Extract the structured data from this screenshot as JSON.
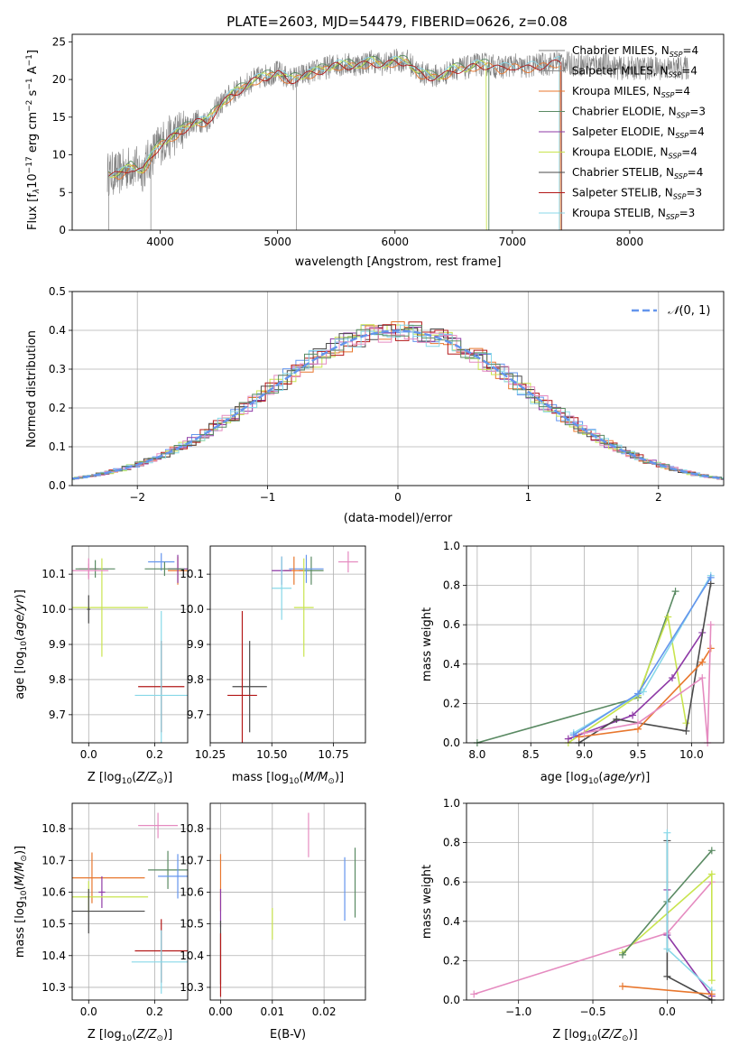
{
  "title": "PLATE=2603, MJD=54479, FIBERID=0626, z=0.08",
  "colors": {
    "series": [
      "#808080",
      "#8c8c8c",
      "#e8772e",
      "#5a8a63",
      "#8e3aa6",
      "#c8e44e",
      "#4a4a4a",
      "#b31818",
      "#88d8e8"
    ],
    "normal": "#6495ed",
    "hist": [
      "#6495ed",
      "#e8772e",
      "#8e3aa6",
      "#c8e44e",
      "#4a4a4a",
      "#b31818",
      "#88d8e8",
      "#e58bc0",
      "#5a8a63"
    ]
  },
  "chart_data": [
    {
      "type": "line",
      "title": "PLATE=2603, MJD=54479, FIBERID=0626, z=0.08",
      "xlabel": "wavelength [Angstrom, rest frame]",
      "ylabel": "Flux [f",
      "xlim": [
        3250,
        8800
      ],
      "ylim": [
        0,
        26
      ],
      "xticks": [
        "4000",
        "5000",
        "6000",
        "7000",
        "8000"
      ],
      "yticks": [
        "0",
        "5",
        "10",
        "15",
        "20",
        "25"
      ],
      "legend_position": "right",
      "legend": [
        {
          "label": "Chabrier MILES, N",
          "n": "4"
        },
        {
          "label": "Salpeter MILES, N",
          "n": "4"
        },
        {
          "label": "Kroupa MILES, N",
          "n": "4"
        },
        {
          "label": "Chabrier ELODIE, N",
          "n": "3"
        },
        {
          "label": "Salpeter ELODIE, N",
          "n": "4"
        },
        {
          "label": "Kroupa ELODIE, N",
          "n": "4"
        },
        {
          "label": "Chabrier STELIB, N",
          "n": "4"
        },
        {
          "label": "Salpeter STELIB, N",
          "n": "3"
        },
        {
          "label": "Kroupa STELIB, N",
          "n": "3"
        }
      ],
      "spectrum_envelope": {
        "x": [
          3550,
          3650,
          3750,
          3850,
          3950,
          4000,
          4100,
          4200,
          4300,
          4400,
          4500,
          4600,
          4700,
          4800,
          4900,
          5000,
          5100,
          5200,
          5300,
          5400,
          5500,
          5600,
          5700,
          5800,
          5900,
          6000,
          6100,
          6200,
          6300,
          6400,
          6500,
          6600,
          6700,
          6800,
          6900,
          7000,
          7100,
          7200,
          7300,
          7400,
          7500,
          7600,
          7700,
          7800,
          7900,
          8000,
          8100,
          8200,
          8300,
          8400,
          8500
        ],
        "y": [
          7.5,
          7.5,
          8.5,
          8.0,
          10.5,
          11.5,
          12.5,
          13.5,
          14.5,
          14.5,
          16.5,
          18.0,
          19.0,
          20.0,
          20.5,
          21.0,
          20.0,
          20.5,
          21.0,
          21.5,
          22.0,
          22.0,
          22.0,
          22.5,
          22.0,
          22.5,
          22.5,
          21.0,
          20.5,
          20.5,
          21.5,
          21.5,
          22.0,
          22.0,
          21.5,
          22.0,
          21.5,
          22.0,
          22.0,
          22.5,
          22.0,
          22.0,
          22.0,
          22.0,
          21.5,
          21.5,
          21.5,
          21.5,
          21.5,
          21.5,
          21.5
        ]
      }
    },
    {
      "type": "histogram",
      "xlabel": "(data-model)/error",
      "ylabel": "Normed distribution",
      "xlim": [
        -2.5,
        2.5
      ],
      "ylim": [
        0,
        0.5
      ],
      "xticks": [
        "−2",
        "−1",
        "0",
        "1",
        "2"
      ],
      "yticks": [
        "0.0",
        "0.1",
        "0.2",
        "0.3",
        "0.4",
        "0.5"
      ],
      "legend_label": "(0, 1)",
      "bin_width": 0.1,
      "reference": "normal(0,1)"
    },
    {
      "type": "scatter",
      "xlabel": "Z [log",
      "ylabel": "age  [log",
      "xlim": [
        -0.05,
        0.3
      ],
      "ylim": [
        9.62,
        10.18
      ],
      "xticks": [
        "0.0",
        "0.2"
      ],
      "yticks": [
        "9.7",
        "9.8",
        "9.9",
        "10.0",
        "10.1"
      ],
      "points": [
        {
          "x": 0.0,
          "y": 10.115,
          "xerr": 0.03,
          "yerr": 0.03
        },
        {
          "x": 0.02,
          "y": 10.115,
          "xerr": 0.06,
          "yerr": 0.025
        },
        {
          "x": 0.22,
          "y": 10.135,
          "xerr": 0.04,
          "yerr": 0.025
        },
        {
          "x": 0.27,
          "y": 10.11,
          "xerr": 0.03,
          "yerr": 0.04
        },
        {
          "x": 0.27,
          "y": 10.115,
          "xerr": 0.03,
          "yerr": 0.04
        },
        {
          "x": 0.04,
          "y": 10.005,
          "xerr": 0.14,
          "yerr": 0.14
        },
        {
          "x": 0.0,
          "y": 10.0,
          "xerr": 0.005,
          "yerr": 0.04
        },
        {
          "x": 0.22,
          "y": 9.78,
          "xerr": 0.07,
          "yerr": 0.13
        },
        {
          "x": 0.22,
          "y": 9.755,
          "xerr": 0.08,
          "yerr": 0.24
        },
        {
          "x": 0.0,
          "y": 10.11,
          "xerr": 0.06,
          "yerr": 0.02
        },
        {
          "x": 0.23,
          "y": 10.115,
          "xerr": 0.06,
          "yerr": 0.02
        }
      ]
    },
    {
      "type": "scatter",
      "xlabel": "mass [log",
      "ylabel": "",
      "xlim": [
        10.25,
        10.88
      ],
      "ylim": [
        9.62,
        10.18
      ],
      "xticks": [
        "10.25",
        "10.50",
        "10.75"
      ],
      "yticks": [
        "9.7",
        "9.8",
        "9.9",
        "10.0",
        "10.1"
      ],
      "points": [
        {
          "x": 10.81,
          "y": 10.135,
          "xerr": 0.04,
          "yerr": 0.03
        },
        {
          "x": 10.66,
          "y": 10.11,
          "xerr": 0.05,
          "yerr": 0.04
        },
        {
          "x": 10.64,
          "y": 10.115,
          "xerr": 0.07,
          "yerr": 0.04
        },
        {
          "x": 10.59,
          "y": 10.11,
          "xerr": 0.04,
          "yerr": 0.04
        },
        {
          "x": 10.54,
          "y": 10.11,
          "xerr": 0.04,
          "yerr": 0.04
        },
        {
          "x": 10.63,
          "y": 10.005,
          "xerr": 0.04,
          "yerr": 0.14
        },
        {
          "x": 10.41,
          "y": 9.78,
          "xerr": 0.07,
          "yerr": 0.13
        },
        {
          "x": 10.38,
          "y": 9.755,
          "xerr": 0.06,
          "yerr": 0.24
        },
        {
          "x": 10.54,
          "y": 10.06,
          "xerr": 0.04,
          "yerr": 0.09
        }
      ]
    },
    {
      "type": "line",
      "xlabel": "age  [log",
      "ylabel": "mass weight",
      "xlim": [
        7.9,
        10.3
      ],
      "ylim": [
        0,
        1
      ],
      "xticks": [
        "8.0",
        "8.5",
        "9.0",
        "9.5",
        "10.0"
      ],
      "yticks": [
        "0.0",
        "0.2",
        "0.4",
        "0.6",
        "0.8",
        "1.0"
      ],
      "series": [
        {
          "color": "#5a8a63",
          "x": [
            8.0,
            9.5,
            9.85
          ],
          "y": [
            0.0,
            0.23,
            0.77
          ]
        },
        {
          "color": "#c8e44e",
          "x": [
            8.85,
            9.5,
            9.78,
            9.95
          ],
          "y": [
            0.0,
            0.24,
            0.64,
            0.1
          ]
        },
        {
          "color": "#8e3aa6",
          "x": [
            8.85,
            9.45,
            9.82,
            10.1
          ],
          "y": [
            0.02,
            0.14,
            0.33,
            0.56
          ]
        },
        {
          "color": "#4a4a4a",
          "x": [
            8.95,
            9.3,
            9.95,
            10.18
          ],
          "y": [
            0.0,
            0.12,
            0.06,
            0.81
          ]
        },
        {
          "color": "#e8772e",
          "x": [
            8.95,
            9.5,
            10.1,
            10.18
          ],
          "y": [
            0.03,
            0.07,
            0.41,
            0.48
          ]
        },
        {
          "color": "#88d8e8",
          "x": [
            8.9,
            9.55,
            10.18
          ],
          "y": [
            0.05,
            0.26,
            0.85
          ]
        },
        {
          "color": "#e58bc0",
          "x": [
            9.0,
            9.5,
            10.1,
            10.15,
            10.18
          ],
          "y": [
            0.05,
            0.1,
            0.33,
            0.0,
            0.6
          ]
        },
        {
          "color": "#6495ed",
          "x": [
            8.9,
            9.5,
            10.18
          ],
          "y": [
            0.04,
            0.25,
            0.84
          ]
        }
      ]
    },
    {
      "type": "scatter",
      "xlabel": "Z [log",
      "ylabel": "mass [log",
      "xlim": [
        -0.05,
        0.3
      ],
      "ylim": [
        10.26,
        10.88
      ],
      "xticks": [
        "0.0",
        "0.2"
      ],
      "yticks": [
        "10.3",
        "10.4",
        "10.5",
        "10.6",
        "10.7",
        "10.8"
      ],
      "points": [
        {
          "x": 0.21,
          "y": 10.81,
          "xerr": 0.06,
          "yerr": 0.04
        },
        {
          "x": 0.24,
          "y": 10.67,
          "xerr": 0.06,
          "yerr": 0.06
        },
        {
          "x": 0.27,
          "y": 10.65,
          "xerr": 0.06,
          "yerr": 0.07
        },
        {
          "x": 0.01,
          "y": 10.645,
          "xerr": 0.16,
          "yerr": 0.08
        },
        {
          "x": 0.04,
          "y": 10.6,
          "xerr": 0.01,
          "yerr": 0.05
        },
        {
          "x": 0.0,
          "y": 10.585,
          "xerr": 0.18,
          "yerr": 0.05
        },
        {
          "x": 0.0,
          "y": 10.54,
          "xerr": 0.17,
          "yerr": 0.07
        },
        {
          "x": 0.22,
          "y": 10.415,
          "xerr": 0.08,
          "yerr": 0.1
        },
        {
          "x": 0.22,
          "y": 10.38,
          "xerr": 0.09,
          "yerr": 0.1
        }
      ]
    },
    {
      "type": "scatter",
      "xlabel": "E(B-V)",
      "ylabel": "",
      "xlim": [
        -0.002,
        0.028
      ],
      "ylim": [
        10.26,
        10.88
      ],
      "xticks": [
        "0.00",
        "0.01",
        "0.02"
      ],
      "yticks": [
        "10.3",
        "10.4",
        "10.5",
        "10.6",
        "10.7",
        "10.8"
      ],
      "points": [
        {
          "x": 0.017,
          "y": 10.78,
          "xerr": 0,
          "yerr": 0.07
        },
        {
          "x": 0.026,
          "y": 10.63,
          "xerr": 0,
          "yerr": 0.11
        },
        {
          "x": 0.024,
          "y": 10.61,
          "xerr": 0,
          "yerr": 0.1
        },
        {
          "x": 0.0,
          "y": 10.63,
          "xerr": 0,
          "yerr": 0.09
        },
        {
          "x": 0.0,
          "y": 10.55,
          "xerr": 0,
          "yerr": 0.06
        },
        {
          "x": 0.01,
          "y": 10.5,
          "xerr": 0,
          "yerr": 0.05
        },
        {
          "x": 0.0,
          "y": 10.41,
          "xerr": 0,
          "yerr": 0.1
        },
        {
          "x": 0.0,
          "y": 10.37,
          "xerr": 0,
          "yerr": 0.1
        }
      ]
    },
    {
      "type": "line",
      "xlabel": "Z [log",
      "ylabel": "mass weight",
      "xlim": [
        -1.35,
        0.38
      ],
      "ylim": [
        0,
        1
      ],
      "xticks": [
        "−1.0",
        "−0.5",
        "0.0"
      ],
      "yticks": [
        "0.0",
        "0.2",
        "0.4",
        "0.6",
        "0.8",
        "1.0"
      ],
      "series": [
        {
          "color": "#e58bc0",
          "x": [
            -1.3,
            0.0,
            0.3
          ],
          "y": [
            0.03,
            0.34,
            0.6
          ]
        },
        {
          "color": "#c8e44e",
          "x": [
            -0.3,
            0.3,
            0.3
          ],
          "y": [
            0.24,
            0.64,
            0.1
          ]
        },
        {
          "color": "#5a8a63",
          "x": [
            -0.3,
            0.0,
            0.3
          ],
          "y": [
            0.23,
            0.5,
            0.76
          ]
        },
        {
          "color": "#8e3aa6",
          "x": [
            0.0,
            0.0,
            0.3
          ],
          "y": [
            0.56,
            0.33,
            0.02
          ]
        },
        {
          "color": "#4a4a4a",
          "x": [
            0.0,
            0.0,
            0.3
          ],
          "y": [
            0.81,
            0.12,
            0.0
          ]
        },
        {
          "color": "#88d8e8",
          "x": [
            0.0,
            0.0,
            0.3
          ],
          "y": [
            0.85,
            0.26,
            0.05
          ]
        },
        {
          "color": "#e8772e",
          "x": [
            -0.3,
            0.3
          ],
          "y": [
            0.07,
            0.03
          ]
        }
      ]
    }
  ]
}
